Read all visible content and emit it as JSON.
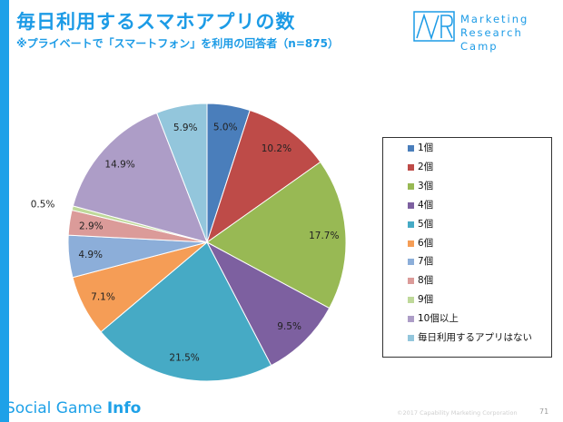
{
  "header": {
    "title": "毎日利用するスマホアプリの数",
    "subtitle": "※プライベートで「スマートフォン」を利用の回答者（n=875）"
  },
  "logo": {
    "mark": "MR",
    "line1": "Marketing",
    "line2": "Research Camp"
  },
  "chart_data": {
    "type": "pie",
    "categories": [
      "1個",
      "2個",
      "3個",
      "4個",
      "5個",
      "6個",
      "7個",
      "8個",
      "9個",
      "10個以上",
      "毎日利用するアプリはない"
    ],
    "values": [
      5.0,
      10.2,
      17.7,
      9.5,
      21.5,
      7.1,
      4.9,
      2.9,
      0.5,
      14.9,
      5.9
    ],
    "labels": [
      "5.0%",
      "10.2%",
      "17.7%",
      "9.5%",
      "21.5%",
      "7.1%",
      "4.9%",
      "2.9%",
      "0.5%",
      "14.9%",
      "5.9%"
    ],
    "colors": [
      "#4a7ebb",
      "#be4b48",
      "#98b954",
      "#7d60a0",
      "#46aac5",
      "#f59d56",
      "#8caed9",
      "#db9b99",
      "#bfd99a",
      "#ad9dc7",
      "#93c6dc"
    ],
    "legend_position": "right",
    "start": "12 o'clock, clockwise"
  },
  "footer": {
    "brand_light": "Social Game ",
    "brand_bold": "Info",
    "copyright": "©2017 Capability Marketing Corporation",
    "page_number": "71"
  }
}
